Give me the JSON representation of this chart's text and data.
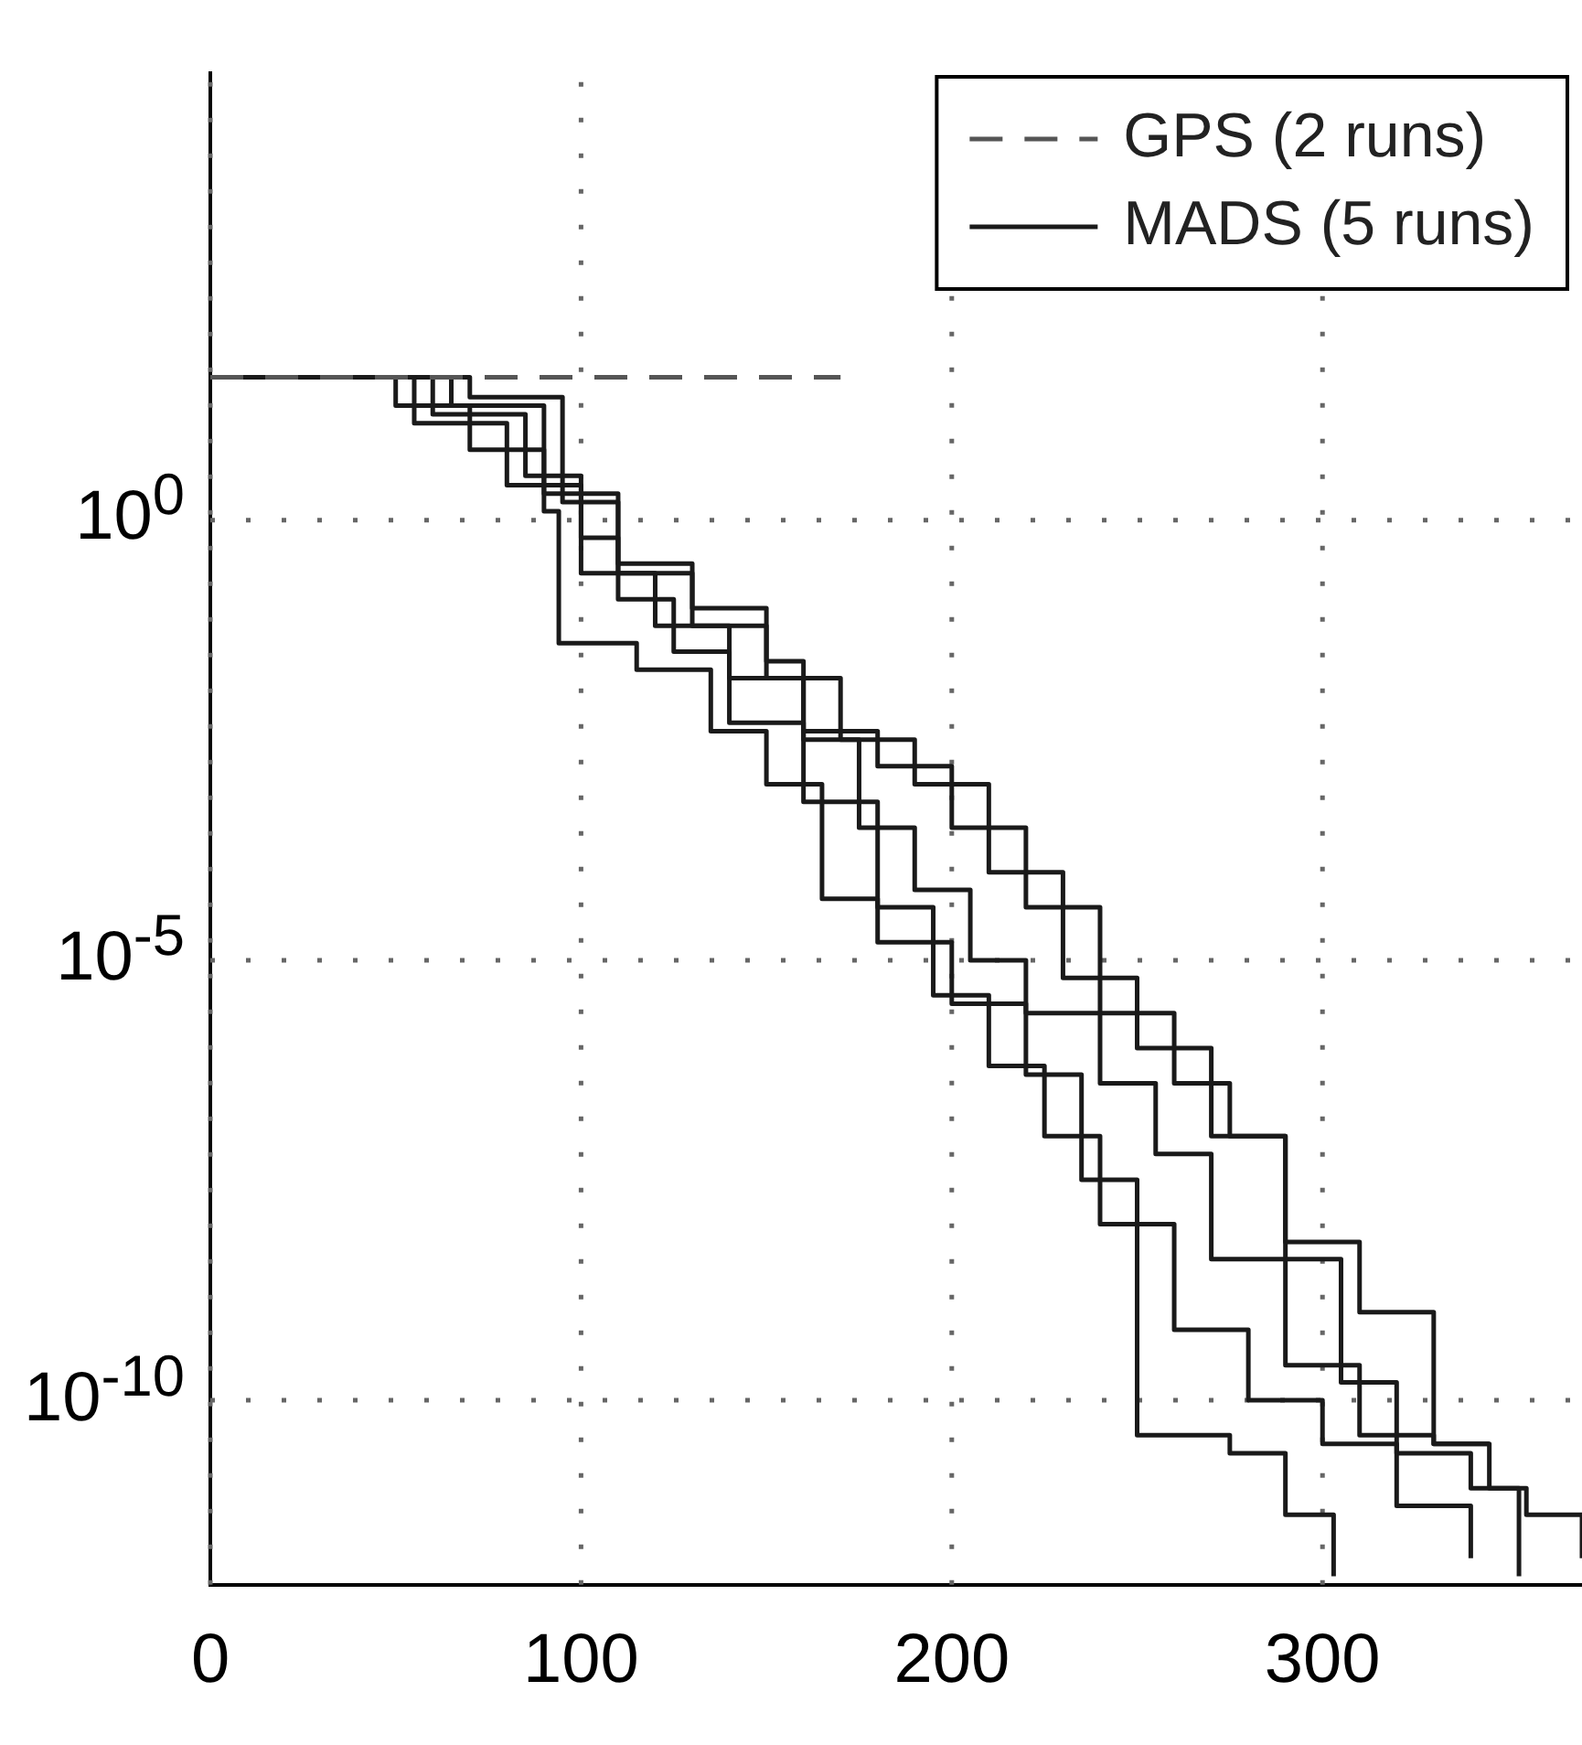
{
  "chart_data": {
    "type": "step",
    "log": "y",
    "grid": true,
    "legend": "top right",
    "marker": "none",
    "line_style": "solid",
    "xlim": [
      0,
      370
    ],
    "xticks": [
      0,
      100,
      200,
      300
    ],
    "ylim": [
      8e-13,
      120000.0
    ],
    "yticks": [
      {
        "value": 1,
        "label": "10$^{0}$"
      },
      {
        "value": 1e-05,
        "label": "10$^{-5}$"
      },
      {
        "value": 1e-10,
        "label": "10$^{-10}$"
      }
    ],
    "series": [
      {
        "name": "GPS (2 runs)",
        "color": "#555555",
        "line_style": "dashed",
        "x": [
          0,
          170
        ],
        "values": [
          42,
          42
        ]
      },
      {
        "name": "MADS (5 runs)",
        "color": "#1a1a1a",
        "x": [
          0,
          50,
          70,
          90,
          94,
          115,
          135,
          150,
          165,
          180,
          200,
          220,
          235,
          250,
          275,
          290,
          303
        ],
        "values": [
          42,
          20,
          6.3,
          1.26,
          0.04,
          0.02,
          0.004,
          0.001,
          5e-05,
          1.6e-05,
          3.2e-06,
          5e-07,
          3.2e-08,
          4e-11,
          2.5e-11,
          5e-12,
          1e-12
        ]
      },
      {
        "color": "#1a1a1a",
        "x": [
          0,
          55,
          80,
          100,
          110,
          125,
          140,
          160,
          180,
          195,
          210,
          225,
          240,
          260,
          280,
          300,
          320,
          340
        ],
        "values": [
          42,
          12.6,
          2.5,
          0.63,
          0.126,
          0.032,
          0.005,
          0.00063,
          4e-05,
          4e-06,
          6.3e-07,
          1e-07,
          1e-08,
          6.3e-10,
          1e-10,
          3.2e-11,
          6.3e-12,
          1.6e-12
        ]
      },
      {
        "color": "#1a1a1a",
        "x": [
          0,
          60,
          85,
          100,
          120,
          140,
          160,
          175,
          190,
          205,
          220,
          240,
          255,
          270,
          290,
          310,
          330,
          345
        ],
        "values": [
          42,
          16,
          3.2,
          0.25,
          0.063,
          0.016,
          0.0032,
          0.00032,
          6.3e-05,
          1e-05,
          2.5e-06,
          4e-07,
          6.3e-08,
          4e-09,
          2.5e-10,
          4e-11,
          3.2e-11,
          3.2e-11
        ]
      },
      {
        "color": "#1a1a1a",
        "x": [
          0,
          65,
          90,
          110,
          130,
          150,
          170,
          190,
          210,
          230,
          250,
          270,
          290,
          305,
          320,
          340,
          355,
          370
        ],
        "values": [
          42,
          20,
          2,
          0.25,
          0.063,
          0.016,
          0.0032,
          0.001,
          0.0001,
          6.3e-06,
          1e-06,
          1e-07,
          4e-09,
          1.6e-10,
          2.5e-11,
          1e-11,
          5e-12,
          1.6e-12
        ]
      },
      {
        "color": "#1a1a1a",
        "x": [
          0,
          70,
          95,
          110,
          130,
          150,
          160,
          180,
          200,
          220,
          240,
          260,
          275,
          290,
          310,
          330,
          345,
          353
        ],
        "values": [
          42,
          25,
          1.6,
          0.32,
          0.1,
          0.025,
          0.004,
          0.0016,
          0.00032,
          4e-05,
          2.5e-06,
          4e-07,
          1e-07,
          6.3e-09,
          1e-09,
          3.2e-11,
          1e-11,
          1e-12
        ]
      }
    ]
  }
}
